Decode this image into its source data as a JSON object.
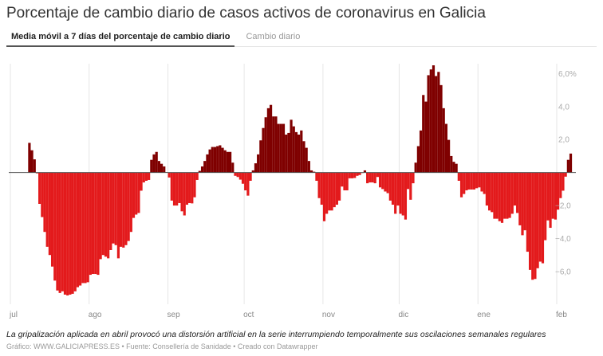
{
  "title": "Porcentaje de cambio diario de casos activos de coronavirus en Galicia",
  "tabs": [
    {
      "label": "Media móvil a 7 días del porcentaje de cambio diario",
      "active": true
    },
    {
      "label": "Cambio diario",
      "active": false
    }
  ],
  "note": "La gripalización aplicada en abril provocó una distorsión artificial en la serie interrumpiendo temporalmente sus oscilaciones semanales regulares",
  "credit": "Gráfico: WWW.GALICIAPRESS.ES • Fuente: Consellería de Sanidade • Creado con Datawrapper",
  "chart_data": {
    "type": "bar",
    "xlim": [
      "2020-07-01",
      "2021-02-09"
    ],
    "ylim": [
      -7.5,
      6.5
    ],
    "x_start": "2020-07-01",
    "x_step": "1 day",
    "x_ticks": [
      {
        "date": "2020-07-01",
        "label": "jul"
      },
      {
        "date": "2020-08-01",
        "label": "ago"
      },
      {
        "date": "2020-09-01",
        "label": "sep"
      },
      {
        "date": "2020-10-01",
        "label": "oct"
      },
      {
        "date": "2020-11-01",
        "label": "nov"
      },
      {
        "date": "2020-12-01",
        "label": "dic"
      },
      {
        "date": "2021-01-01",
        "label": "ene"
      },
      {
        "date": "2021-02-01",
        "label": "feb"
      }
    ],
    "y_ticks": [
      {
        "value": 6,
        "label": "6,0%"
      },
      {
        "value": 4,
        "label": "4,0"
      },
      {
        "value": 2,
        "label": "2,0"
      },
      {
        "value": -2,
        "label": "−2,0"
      },
      {
        "value": -4,
        "label": "−4,0"
      },
      {
        "value": -6,
        "label": "−6,0"
      }
    ],
    "grid": "vertical at month starts",
    "colors": {
      "positive": "#7f0000",
      "negative": "#e31a1c",
      "zero_line": "#555555",
      "grid": "#e6e6e6"
    },
    "values": [
      null,
      null,
      null,
      null,
      null,
      null,
      null,
      1.8,
      1.35,
      0.8,
      -0.05,
      -1.9,
      -2.7,
      -3.6,
      -4.5,
      -5.0,
      -5.7,
      -6.55,
      -7.15,
      -7.3,
      -7.2,
      -7.4,
      -7.45,
      -7.4,
      -7.35,
      -7.2,
      -6.95,
      -6.85,
      -6.7,
      -6.7,
      -6.65,
      -6.2,
      -6.15,
      -6.15,
      -6.2,
      -5.25,
      -5.0,
      -5.1,
      -5.2,
      -4.7,
      -4.3,
      -4.4,
      -5.2,
      -4.5,
      -4.55,
      -4.4,
      -4.15,
      -3.6,
      -2.75,
      -2.55,
      -2.45,
      -1.1,
      -0.6,
      -0.5,
      -0.45,
      0.77,
      1.1,
      1.25,
      0.7,
      0.53,
      0.37,
      0.02,
      -0.3,
      -1.7,
      -2.0,
      -2.0,
      -1.85,
      -2.35,
      -2.6,
      -1.95,
      -1.85,
      -1.87,
      -1.5,
      -0.45,
      0.1,
      0.37,
      0.7,
      1.1,
      1.4,
      1.55,
      1.55,
      1.6,
      1.65,
      1.5,
      1.35,
      1.25,
      1.25,
      0.6,
      -0.2,
      -0.27,
      -0.43,
      -0.68,
      -1.08,
      -1.4,
      -0.5,
      0.13,
      0.56,
      1.1,
      1.95,
      2.7,
      3.35,
      3.9,
      4.1,
      3.4,
      3.4,
      2.95,
      2.95,
      2.95,
      2.3,
      2.4,
      3.2,
      2.8,
      2.45,
      2.3,
      2.55,
      1.9,
      1.5,
      0.7,
      0.13,
      0.05,
      -0.5,
      -1.55,
      -1.95,
      -2.95,
      -2.5,
      -2.3,
      -2.3,
      -2.1,
      -1.95,
      -1.7,
      -0.85,
      -1.08,
      -1.08,
      -0.35,
      -0.35,
      -0.33,
      -0.2,
      -0.15,
      -0.03,
      0.13,
      -0.65,
      -0.6,
      -0.6,
      -0.65,
      -0.27,
      -0.9,
      -1.0,
      -1.15,
      -1.25,
      -1.7,
      -1.95,
      -2.5,
      -2.0,
      -2.5,
      -2.6,
      -2.85,
      -1.0,
      -1.65,
      -0.65,
      0.6,
      1.6,
      2.55,
      4.7,
      4.3,
      5.9,
      6.25,
      6.5,
      5.85,
      6.1,
      5.3,
      3.9,
      2.95,
      1.98,
      1.0,
      0.65,
      0.53,
      -0.5,
      -1.5,
      -1.3,
      -1.08,
      -1.03,
      -1.03,
      -1.03,
      -0.95,
      -0.9,
      -1.15,
      -1.3,
      -2.0,
      -2.3,
      -2.4,
      -2.8,
      -2.8,
      -2.95,
      -3.05,
      -2.8,
      -2.8,
      -2.75,
      -2.5,
      -2.0,
      -2.45,
      -3.2,
      -3.8,
      -3.5,
      -4.8,
      -5.9,
      -6.5,
      -6.45,
      -5.8,
      -5.4,
      -5.5,
      -4.1,
      -2.9,
      -3.35,
      -2.8,
      -2.85,
      -2.25,
      -1.55,
      -1.1,
      -0.25,
      0.77,
      1.15
    ]
  }
}
